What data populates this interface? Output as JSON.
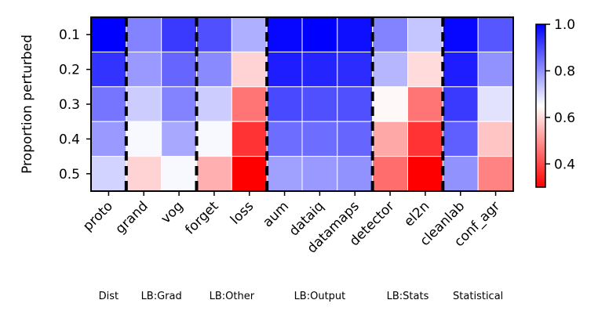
{
  "chart_data": {
    "type": "heatmap",
    "title": "",
    "xlabel": "",
    "ylabel": "Proportion perturbed",
    "rows": [
      "0.1",
      "0.2",
      "0.3",
      "0.4",
      "0.5"
    ],
    "columns": [
      "proto",
      "grand",
      "vog",
      "forget",
      "loss",
      "aum",
      "dataiq",
      "datamaps",
      "detector",
      "el2n",
      "cleanlab",
      "conf_agr"
    ],
    "values": [
      [
        1.0,
        0.82,
        0.92,
        0.89,
        0.76,
        0.99,
        1.0,
        0.98,
        0.82,
        0.73,
        0.99,
        0.88
      ],
      [
        0.93,
        0.79,
        0.86,
        0.81,
        0.59,
        0.96,
        0.95,
        0.94,
        0.75,
        0.6,
        0.96,
        0.8
      ],
      [
        0.84,
        0.72,
        0.82,
        0.72,
        0.46,
        0.9,
        0.89,
        0.89,
        0.64,
        0.46,
        0.92,
        0.69
      ],
      [
        0.79,
        0.66,
        0.77,
        0.66,
        0.37,
        0.85,
        0.85,
        0.86,
        0.53,
        0.37,
        0.87,
        0.57
      ],
      [
        0.71,
        0.59,
        0.66,
        0.54,
        0.29,
        0.78,
        0.79,
        0.8,
        0.45,
        0.29,
        0.8,
        0.48
      ]
    ],
    "colorbar": {
      "min": 0.3,
      "max": 1.0,
      "ticks": [
        "0.4",
        "0.6",
        "0.8",
        "1.0"
      ],
      "tick_values": [
        0.4,
        0.6,
        0.8,
        1.0
      ],
      "colormap": "bwr_r"
    },
    "column_groups": [
      {
        "label": "Dist",
        "start": 0,
        "end": 0
      },
      {
        "label": "LB:Grad",
        "start": 1,
        "end": 2
      },
      {
        "label": "LB:Other",
        "start": 3,
        "end": 4
      },
      {
        "label": "LB:Output",
        "start": 5,
        "end": 7
      },
      {
        "label": "LB:Stats",
        "start": 8,
        "end": 9
      },
      {
        "label": "Statistical",
        "start": 10,
        "end": 11
      }
    ],
    "group_separators_after_column": [
      0,
      2,
      4,
      7,
      9
    ]
  }
}
